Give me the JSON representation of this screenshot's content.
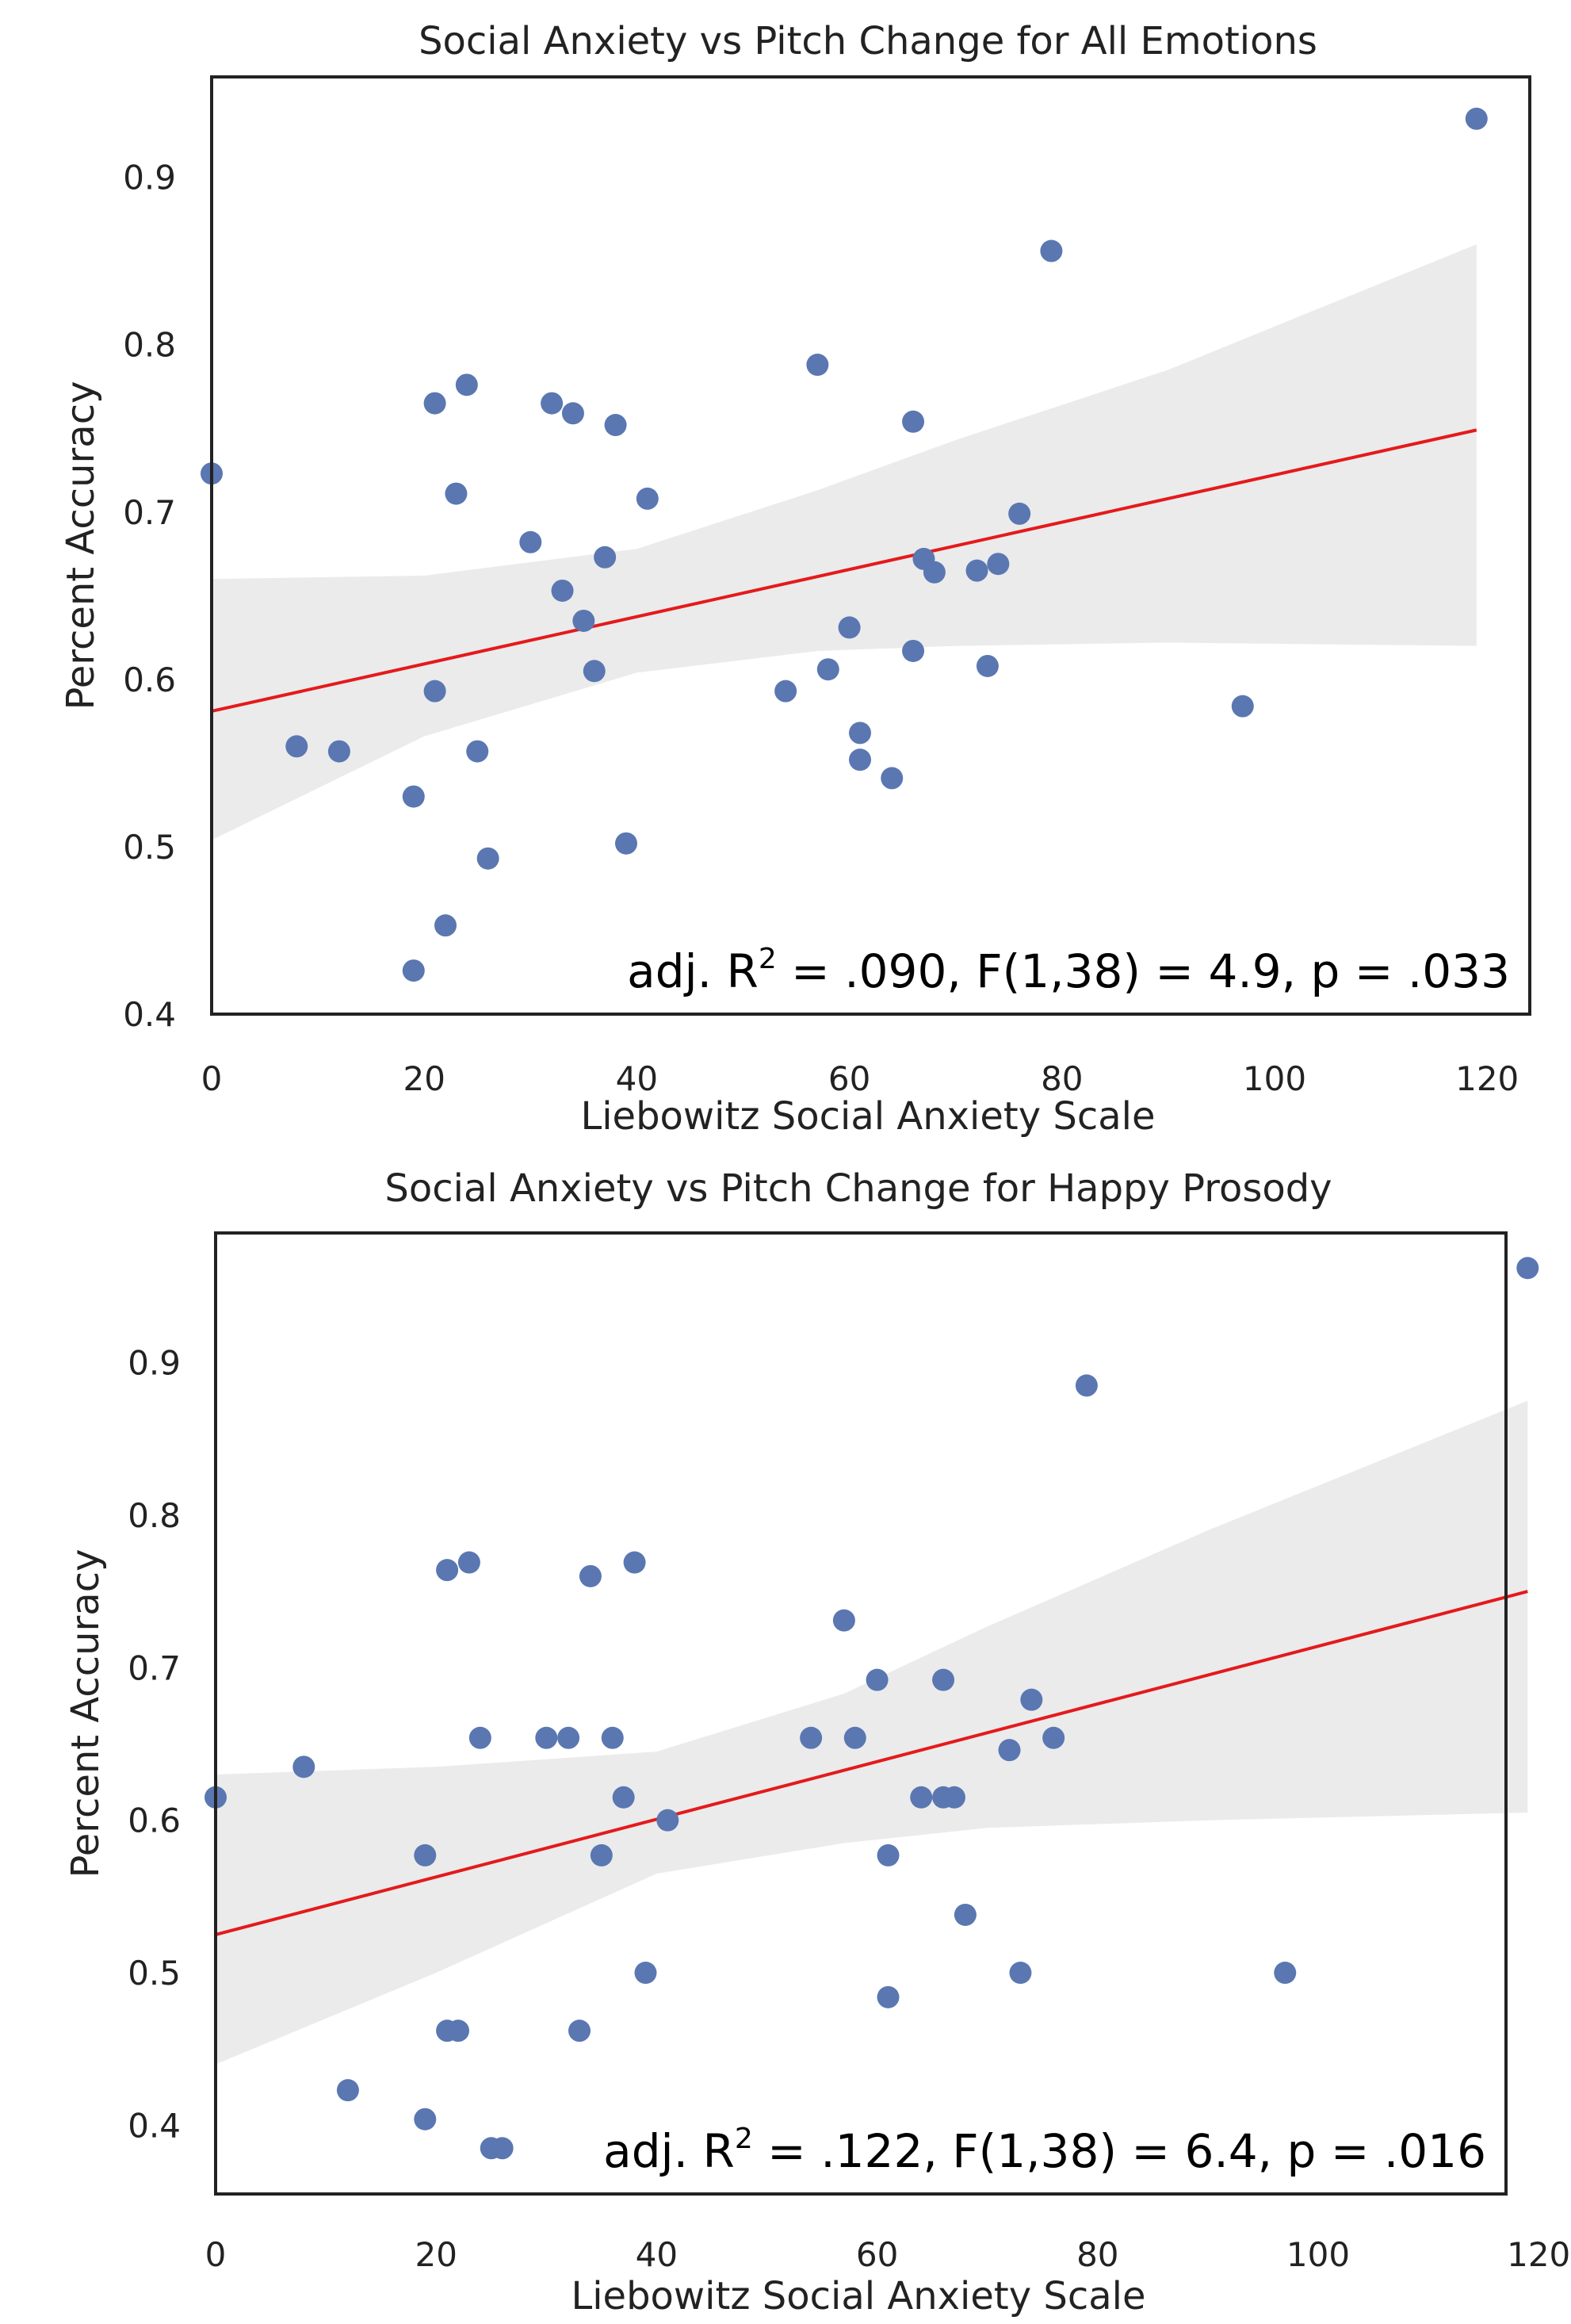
{
  "chart_data": [
    {
      "type": "scatter",
      "title": "Social Anxiety vs Pitch Change for All Emotions",
      "xlabel": "Liebowitz Social Anxiety Scale",
      "ylabel": "Percent Accuracy",
      "xlim": [
        0,
        125
      ],
      "ylim": [
        0.4,
        0.96
      ],
      "xticks": [
        "0",
        "20",
        "40",
        "60",
        "80",
        "100",
        "120"
      ],
      "xtick_values": [
        0,
        20,
        40,
        60,
        80,
        100,
        120
      ],
      "yticks": [
        "0.4",
        "0.5",
        "0.6",
        "0.7",
        "0.8",
        "0.9"
      ],
      "ytick_values": [
        0.4,
        0.5,
        0.6,
        0.7,
        0.8,
        0.9
      ],
      "annotation": {
        "prefix": "adj. R",
        "sup": "2",
        "suffix": " = .090, F(1,38) = 4.9, p = .033"
      },
      "grid": false,
      "point_color": "#5a77b1",
      "line_color": "#e41a1c",
      "band_color": "#ebebeb",
      "regression": {
        "x": [
          0,
          119
        ],
        "y": [
          0.581,
          0.749
        ]
      },
      "ci_band": {
        "x": [
          0,
          20,
          40,
          57,
          70,
          90,
          119
        ],
        "lower": [
          0.504,
          0.566,
          0.604,
          0.617,
          0.62,
          0.622,
          0.62
        ],
        "upper": [
          0.66,
          0.662,
          0.678,
          0.713,
          0.743,
          0.785,
          0.86
        ]
      },
      "points": [
        {
          "x": 0,
          "y": 0.723
        },
        {
          "x": 8,
          "y": 0.56
        },
        {
          "x": 12,
          "y": 0.557
        },
        {
          "x": 19,
          "y": 0.53
        },
        {
          "x": 19,
          "y": 0.426
        },
        {
          "x": 21,
          "y": 0.765
        },
        {
          "x": 21,
          "y": 0.593
        },
        {
          "x": 22,
          "y": 0.453
        },
        {
          "x": 23,
          "y": 0.711
        },
        {
          "x": 24,
          "y": 0.776
        },
        {
          "x": 25,
          "y": 0.557
        },
        {
          "x": 26,
          "y": 0.493
        },
        {
          "x": 30,
          "y": 0.682
        },
        {
          "x": 32,
          "y": 0.765
        },
        {
          "x": 33,
          "y": 0.653
        },
        {
          "x": 34,
          "y": 0.759
        },
        {
          "x": 35,
          "y": 0.635
        },
        {
          "x": 36,
          "y": 0.605
        },
        {
          "x": 37,
          "y": 0.673
        },
        {
          "x": 38,
          "y": 0.752
        },
        {
          "x": 39,
          "y": 0.502
        },
        {
          "x": 41,
          "y": 0.708
        },
        {
          "x": 54,
          "y": 0.593
        },
        {
          "x": 57,
          "y": 0.788
        },
        {
          "x": 58,
          "y": 0.606
        },
        {
          "x": 60,
          "y": 0.631
        },
        {
          "x": 61,
          "y": 0.568
        },
        {
          "x": 61,
          "y": 0.552
        },
        {
          "x": 64,
          "y": 0.541
        },
        {
          "x": 66,
          "y": 0.754
        },
        {
          "x": 66,
          "y": 0.617
        },
        {
          "x": 67,
          "y": 0.672
        },
        {
          "x": 68,
          "y": 0.664
        },
        {
          "x": 72,
          "y": 0.665
        },
        {
          "x": 73,
          "y": 0.608
        },
        {
          "x": 74,
          "y": 0.669
        },
        {
          "x": 76,
          "y": 0.699
        },
        {
          "x": 79,
          "y": 0.856
        },
        {
          "x": 97,
          "y": 0.584
        },
        {
          "x": 119,
          "y": 0.935
        }
      ]
    },
    {
      "type": "scatter",
      "title": "Social Anxiety vs Pitch Change for Happy Prosody",
      "xlabel": "Liebowitz Social Anxiety Scale",
      "ylabel": "Percent Accuracy",
      "xlim": [
        0,
        125
      ],
      "ylim": [
        0.355,
        0.985
      ],
      "xticks": [
        "0",
        "20",
        "40",
        "60",
        "80",
        "100",
        "120"
      ],
      "xtick_values": [
        0,
        20,
        40,
        60,
        80,
        100,
        120
      ],
      "yticks": [
        "0.4",
        "0.5",
        "0.6",
        "0.7",
        "0.8",
        "0.9"
      ],
      "ytick_values": [
        0.4,
        0.5,
        0.6,
        0.7,
        0.8,
        0.9
      ],
      "annotation": {
        "prefix": "adj. R",
        "sup": "2",
        "suffix": " = .122, F(1,38) = 6.4, p = .016"
      },
      "grid": false,
      "point_color": "#5a77b1",
      "line_color": "#e41a1c",
      "band_color": "#ebebeb",
      "regression": {
        "x": [
          0,
          119
        ],
        "y": [
          0.525,
          0.75
        ]
      },
      "ci_band": {
        "x": [
          0,
          20,
          40,
          57,
          70,
          90,
          119
        ],
        "lower": [
          0.44,
          0.5,
          0.565,
          0.585,
          0.595,
          0.6,
          0.605
        ],
        "upper": [
          0.63,
          0.635,
          0.645,
          0.683,
          0.727,
          0.79,
          0.875
        ]
      },
      "points": [
        {
          "x": 0,
          "y": 0.615
        },
        {
          "x": 8,
          "y": 0.635
        },
        {
          "x": 12,
          "y": 0.423
        },
        {
          "x": 19,
          "y": 0.577
        },
        {
          "x": 19,
          "y": 0.404
        },
        {
          "x": 21,
          "y": 0.764
        },
        {
          "x": 21,
          "y": 0.462
        },
        {
          "x": 22,
          "y": 0.462
        },
        {
          "x": 23,
          "y": 0.769
        },
        {
          "x": 24,
          "y": 0.654
        },
        {
          "x": 25,
          "y": 0.385
        },
        {
          "x": 26,
          "y": 0.385
        },
        {
          "x": 30,
          "y": 0.654
        },
        {
          "x": 32,
          "y": 0.654
        },
        {
          "x": 33,
          "y": 0.462
        },
        {
          "x": 34,
          "y": 0.76
        },
        {
          "x": 35,
          "y": 0.577
        },
        {
          "x": 36,
          "y": 0.654
        },
        {
          "x": 37,
          "y": 0.615
        },
        {
          "x": 38,
          "y": 0.769
        },
        {
          "x": 39,
          "y": 0.5
        },
        {
          "x": 41,
          "y": 0.6
        },
        {
          "x": 54,
          "y": 0.654
        },
        {
          "x": 57,
          "y": 0.731
        },
        {
          "x": 58,
          "y": 0.654
        },
        {
          "x": 60,
          "y": 0.692
        },
        {
          "x": 61,
          "y": 0.577
        },
        {
          "x": 61,
          "y": 0.484
        },
        {
          "x": 64,
          "y": 0.615
        },
        {
          "x": 66,
          "y": 0.692
        },
        {
          "x": 66,
          "y": 0.615
        },
        {
          "x": 67,
          "y": 0.615
        },
        {
          "x": 68,
          "y": 0.538
        },
        {
          "x": 72,
          "y": 0.646
        },
        {
          "x": 73,
          "y": 0.5
        },
        {
          "x": 74,
          "y": 0.679
        },
        {
          "x": 76,
          "y": 0.654
        },
        {
          "x": 79,
          "y": 0.885
        },
        {
          "x": 97,
          "y": 0.5
        },
        {
          "x": 119,
          "y": 0.962
        }
      ]
    }
  ]
}
